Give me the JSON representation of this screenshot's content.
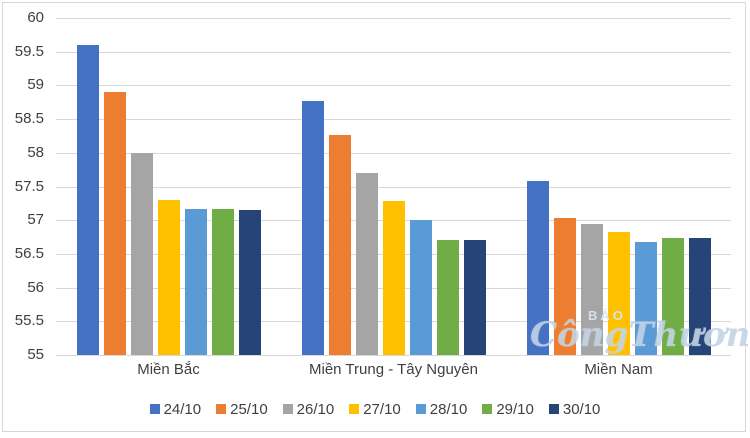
{
  "chart_data": {
    "type": "bar",
    "title": "",
    "xlabel": "",
    "ylabel": "",
    "categories": [
      "Miền Bắc",
      "Miền Trung - Tây Nguyên",
      "Miền Nam"
    ],
    "series": [
      {
        "name": "24/10",
        "color": "#4472C4",
        "values": [
          59.6,
          58.77,
          57.58
        ]
      },
      {
        "name": "25/10",
        "color": "#ED7D31",
        "values": [
          58.9,
          58.27,
          57.04
        ]
      },
      {
        "name": "26/10",
        "color": "#A5A5A5",
        "values": [
          58.0,
          57.7,
          56.95
        ]
      },
      {
        "name": "27/10",
        "color": "#FFC000",
        "values": [
          57.3,
          57.28,
          56.83
        ]
      },
      {
        "name": "28/10",
        "color": "#5B9BD5",
        "values": [
          57.17,
          57.0,
          56.67
        ]
      },
      {
        "name": "29/10",
        "color": "#70AD47",
        "values": [
          57.17,
          56.7,
          56.74
        ]
      },
      {
        "name": "30/10",
        "color": "#264478",
        "values": [
          57.15,
          56.7,
          56.73
        ]
      }
    ],
    "ylim": [
      55,
      60
    ],
    "y_tick_step": 0.5,
    "y_ticks": [
      "60",
      "59.5",
      "59",
      "58.5",
      "58",
      "57.5",
      "57",
      "56.5",
      "56",
      "55.5",
      "55"
    ],
    "grid": true,
    "legend_position": "bottom"
  },
  "watermark": {
    "line1": "BÁO",
    "line2": "CôngThương"
  },
  "colors": {
    "gridline": "#d9d9d9",
    "axis_text": "#404040",
    "frame_border": "#d7d7d7"
  }
}
